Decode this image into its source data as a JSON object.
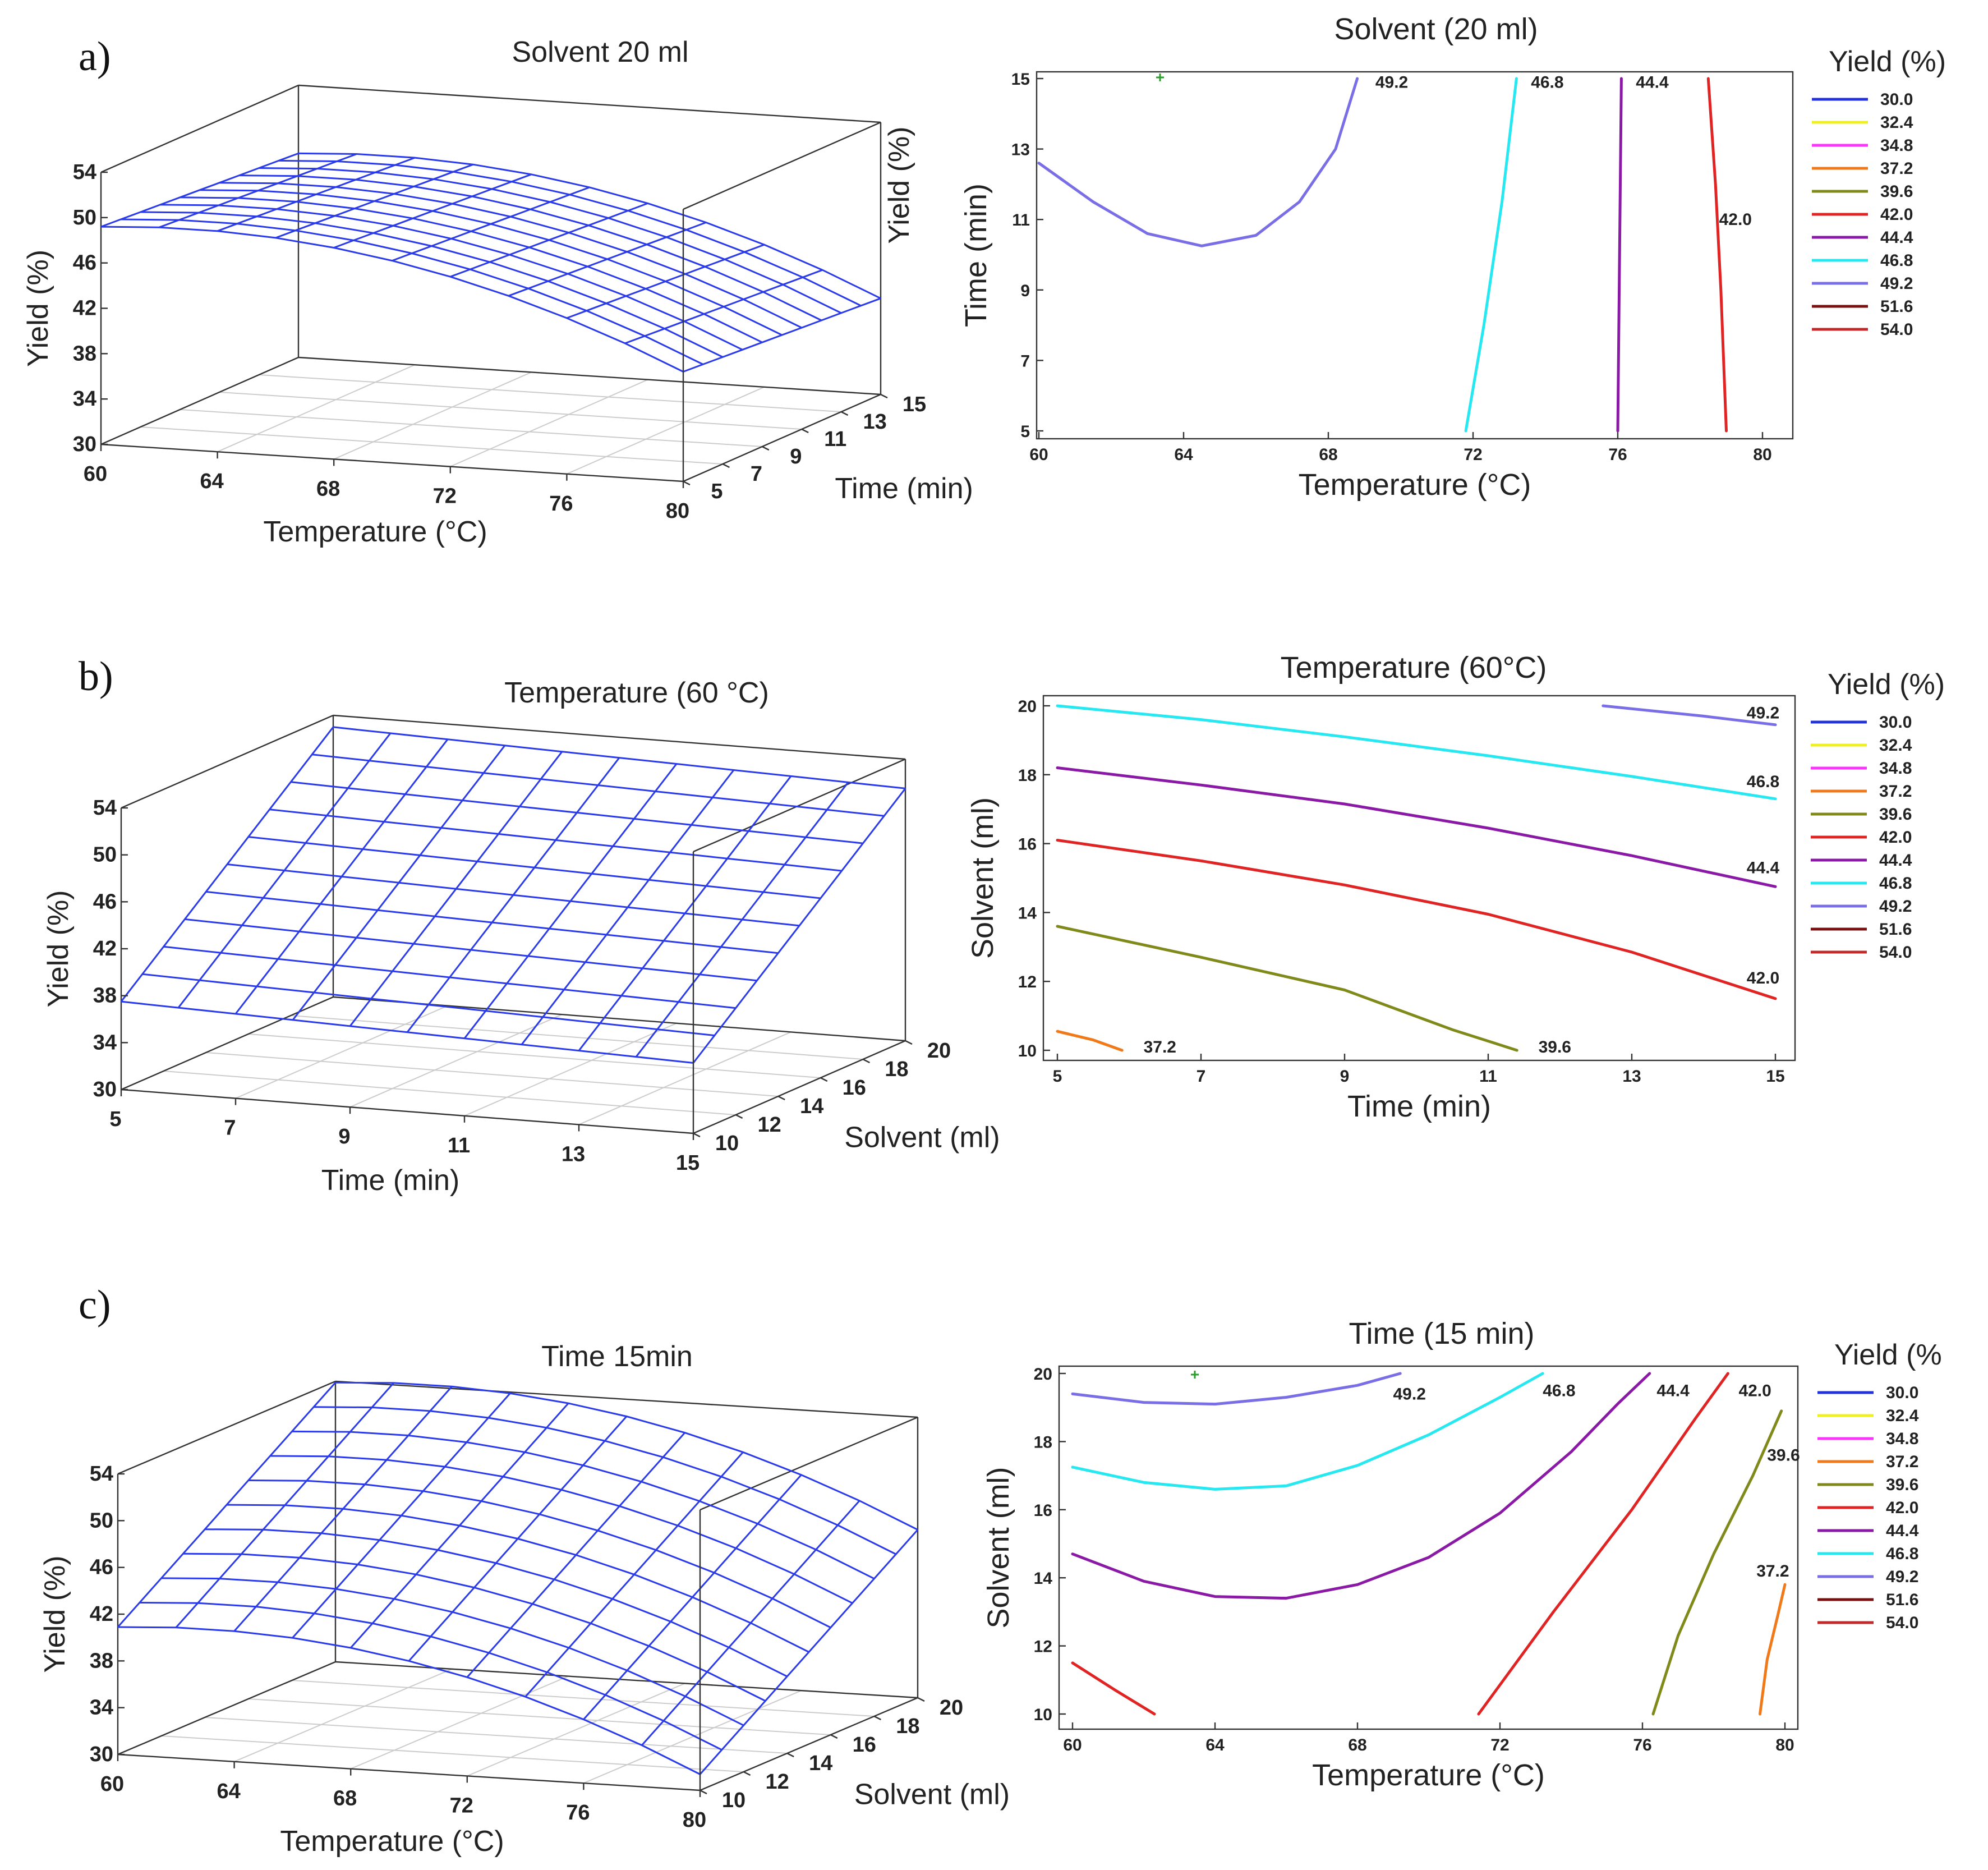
{
  "figure": {
    "panels": [
      {
        "label": "a)",
        "surface": {
          "type": "surface3d",
          "title": "Solvent 20 ml",
          "xlabel": "Temperature (°C)",
          "ylabel": "Time (min)",
          "zlabel": "Yield (%)",
          "x_ticks": [
            "60",
            "64",
            "68",
            "72",
            "76",
            "80"
          ],
          "y_ticks": [
            "5",
            "7",
            "9",
            "11",
            "13",
            "15"
          ],
          "z_ticks": [
            "30",
            "34",
            "38",
            "42",
            "46",
            "50",
            "54"
          ],
          "x_range": [
            60,
            80
          ],
          "y_range": [
            5,
            15
          ],
          "z_range": [
            30,
            54
          ],
          "model": "yield(T, t)",
          "overlay_label": "Yield (%)"
        },
        "contour": {
          "type": "contour",
          "title": "Solvent (20 ml)",
          "xlabel": "Temperature (°C)",
          "ylabel": "Time (min)",
          "x_ticks": [
            "60",
            "64",
            "68",
            "72",
            "76",
            "80"
          ],
          "y_ticks": [
            "5",
            "7",
            "9",
            "11",
            "13",
            "15"
          ],
          "x_range": [
            60,
            80
          ],
          "y_range": [
            5,
            15
          ],
          "lines": [
            {
              "level": "49.2",
              "color": "#7a6ee6",
              "points": [
                [
                  60,
                  12.6
                ],
                [
                  61.5,
                  11.5
                ],
                [
                  63,
                  10.6
                ],
                [
                  64.5,
                  10.25
                ],
                [
                  66,
                  10.55
                ],
                [
                  67.2,
                  11.5
                ],
                [
                  68.2,
                  13.0
                ],
                [
                  68.8,
                  15.0
                ]
              ],
              "label_at": [
                69.3,
                14.9
              ]
            },
            {
              "level": "46.8",
              "color": "#25e8f0",
              "points": [
                [
                  71.8,
                  5.0
                ],
                [
                  72.3,
                  8.0
                ],
                [
                  72.8,
                  11.5
                ],
                [
                  73.2,
                  15.0
                ]
              ],
              "label_at": [
                73.6,
                14.9
              ]
            },
            {
              "level": "44.4",
              "color": "#8a1aa6",
              "points": [
                [
                  76.0,
                  5.0
                ],
                [
                  76.05,
                  10.0
                ],
                [
                  76.1,
                  15.0
                ]
              ],
              "label_at": [
                76.5,
                14.9
              ]
            },
            {
              "level": "42.0",
              "color": "#e02424",
              "points": [
                [
                  79.0,
                  5.0
                ],
                [
                  78.85,
                  9.0
                ],
                [
                  78.7,
                  12.0
                ],
                [
                  78.5,
                  15.0
                ]
              ],
              "label_at": [
                78.8,
                11.0
              ]
            }
          ]
        }
      },
      {
        "label": "b)",
        "surface": {
          "type": "surface3d",
          "title": "Temperature (60 °C)",
          "xlabel": "Time (min)",
          "ylabel": "Solvent (ml)",
          "zlabel": "Yield (%)",
          "x_ticks": [
            "5",
            "7",
            "9",
            "11",
            "13",
            "15"
          ],
          "y_ticks": [
            "10",
            "12",
            "14",
            "16",
            "18",
            "20"
          ],
          "z_ticks": [
            "30",
            "34",
            "38",
            "42",
            "46",
            "50",
            "54"
          ],
          "x_range": [
            5,
            15
          ],
          "y_range": [
            10,
            20
          ],
          "z_range": [
            30,
            54
          ],
          "model": "yield(t, S)"
        },
        "contour": {
          "type": "contour",
          "title": "Temperature (60°C)",
          "xlabel": "Time (min)",
          "ylabel": "Solvent (ml)",
          "x_ticks": [
            "5",
            "7",
            "9",
            "11",
            "13",
            "15"
          ],
          "y_ticks": [
            "10",
            "12",
            "14",
            "16",
            "18",
            "20"
          ],
          "x_range": [
            5,
            15
          ],
          "y_range": [
            10,
            20
          ],
          "lines": [
            {
              "level": "49.2",
              "color": "#7a6ee6",
              "points": [
                [
                  12.6,
                  20.0
                ],
                [
                  14,
                  19.7
                ],
                [
                  15,
                  19.45
                ]
              ],
              "label_at": [
                14.6,
                19.8
              ]
            },
            {
              "level": "46.8",
              "color": "#25e8f0",
              "points": [
                [
                  5,
                  20.0
                ],
                [
                  7,
                  19.6
                ],
                [
                  9,
                  19.1
                ],
                [
                  11,
                  18.55
                ],
                [
                  13,
                  17.95
                ],
                [
                  15,
                  17.3
                ]
              ],
              "label_at": [
                14.6,
                17.8
              ]
            },
            {
              "level": "44.4",
              "color": "#8a1aa6",
              "points": [
                [
                  5,
                  18.2
                ],
                [
                  7,
                  17.7
                ],
                [
                  9,
                  17.15
                ],
                [
                  11,
                  16.45
                ],
                [
                  13,
                  15.65
                ],
                [
                  15,
                  14.75
                ]
              ],
              "label_at": [
                14.6,
                15.3
              ]
            },
            {
              "level": "42.0",
              "color": "#e02424",
              "points": [
                [
                  5,
                  16.1
                ],
                [
                  7,
                  15.5
                ],
                [
                  9,
                  14.8
                ],
                [
                  11,
                  13.95
                ],
                [
                  13,
                  12.85
                ],
                [
                  15,
                  11.5
                ]
              ],
              "label_at": [
                14.6,
                12.1
              ]
            },
            {
              "level": "39.6",
              "color": "#7f8a1a",
              "points": [
                [
                  5,
                  13.6
                ],
                [
                  7,
                  12.7
                ],
                [
                  9,
                  11.75
                ],
                [
                  10.5,
                  10.6
                ],
                [
                  11.4,
                  10.0
                ]
              ],
              "label_at": [
                11.7,
                10.1
              ]
            },
            {
              "level": "37.2",
              "color": "#f07a1a",
              "points": [
                [
                  5,
                  10.55
                ],
                [
                  5.5,
                  10.3
                ],
                [
                  5.9,
                  10.0
                ]
              ],
              "label_at": [
                6.2,
                10.1
              ]
            }
          ]
        }
      },
      {
        "label": "c)",
        "surface": {
          "type": "surface3d",
          "title": "Time 15min",
          "xlabel": "Temperature (°C)",
          "ylabel": "Solvent (ml)",
          "zlabel": "Yield (%)",
          "x_ticks": [
            "60",
            "64",
            "68",
            "72",
            "76",
            "80"
          ],
          "y_ticks": [
            "10",
            "12",
            "14",
            "16",
            "18",
            "20"
          ],
          "z_ticks": [
            "30",
            "34",
            "38",
            "42",
            "46",
            "50",
            "54"
          ],
          "x_range": [
            60,
            80
          ],
          "y_range": [
            10,
            20
          ],
          "z_range": [
            30,
            54
          ],
          "model": "yield(T, S)"
        },
        "contour": {
          "type": "contour",
          "title": "Time (15 min)",
          "xlabel": "Temperature (°C)",
          "ylabel": "Solvent (ml)",
          "x_ticks": [
            "60",
            "64",
            "68",
            "72",
            "76",
            "80"
          ],
          "y_ticks": [
            "10",
            "12",
            "14",
            "16",
            "18",
            "20"
          ],
          "x_range": [
            60,
            80
          ],
          "y_range": [
            10,
            20
          ],
          "lines": [
            {
              "level": "49.2",
              "color": "#7a6ee6",
              "points": [
                [
                  60,
                  19.4
                ],
                [
                  62,
                  19.15
                ],
                [
                  64,
                  19.1
                ],
                [
                  66,
                  19.3
                ],
                [
                  68,
                  19.65
                ],
                [
                  69.2,
                  20.0
                ]
              ],
              "label_at": [
                69.0,
                19.4
              ]
            },
            {
              "level": "46.8",
              "color": "#25e8f0",
              "points": [
                [
                  60,
                  17.25
                ],
                [
                  62,
                  16.8
                ],
                [
                  64,
                  16.6
                ],
                [
                  66,
                  16.7
                ],
                [
                  68,
                  17.3
                ],
                [
                  70,
                  18.2
                ],
                [
                  72,
                  19.3
                ],
                [
                  73.2,
                  20.0
                ]
              ],
              "label_at": [
                73.2,
                19.5
              ]
            },
            {
              "level": "44.4",
              "color": "#8a1aa6",
              "points": [
                [
                  60,
                  14.7
                ],
                [
                  62,
                  13.9
                ],
                [
                  64,
                  13.45
                ],
                [
                  66,
                  13.4
                ],
                [
                  68,
                  13.8
                ],
                [
                  70,
                  14.6
                ],
                [
                  72,
                  15.9
                ],
                [
                  74,
                  17.7
                ],
                [
                  75.3,
                  19.1
                ],
                [
                  76.2,
                  20.0
                ]
              ],
              "label_at": [
                76.4,
                19.5
              ]
            },
            {
              "level": "42.0",
              "color": "#e02424",
              "points": [
                [
                  60,
                  11.5
                ],
                [
                  61.2,
                  10.7
                ],
                [
                  62.3,
                  10.0
                ]
              ],
              "label_at": null
            },
            {
              "level": "42.0",
              "color": "#e02424",
              "points": [
                [
                  71.4,
                  10.0
                ],
                [
                  73.5,
                  13.0
                ],
                [
                  75.7,
                  16.0
                ],
                [
                  77.5,
                  18.7
                ],
                [
                  78.4,
                  20.0
                ]
              ],
              "label_at": [
                78.7,
                19.5
              ]
            },
            {
              "level": "39.6",
              "color": "#7f8a1a",
              "points": [
                [
                  76.3,
                  10.0
                ],
                [
                  77,
                  12.3
                ],
                [
                  78,
                  14.7
                ],
                [
                  79.1,
                  17.0
                ],
                [
                  79.9,
                  18.9
                ]
              ],
              "label_at": [
                79.5,
                17.6
              ]
            },
            {
              "level": "37.2",
              "color": "#f07a1a",
              "points": [
                [
                  79.3,
                  10.0
                ],
                [
                  79.5,
                  11.6
                ],
                [
                  79.8,
                  12.9
                ],
                [
                  80.0,
                  13.8
                ]
              ],
              "label_at": [
                79.2,
                14.2
              ]
            }
          ]
        }
      }
    ],
    "legend": {
      "title": "Yield (%)",
      "title_c": "Yield (%",
      "items": [
        {
          "label": "30.0",
          "color": "#2233dd"
        },
        {
          "label": "32.4",
          "color": "#f0f020"
        },
        {
          "label": "34.8",
          "color": "#ff33ff"
        },
        {
          "label": "37.2",
          "color": "#f07a1a"
        },
        {
          "label": "39.6",
          "color": "#7f8a1a"
        },
        {
          "label": "42.0",
          "color": "#e02424"
        },
        {
          "label": "44.4",
          "color": "#8a1aa6"
        },
        {
          "label": "46.8",
          "color": "#25e8f0"
        },
        {
          "label": "49.2",
          "color": "#7a6ee6"
        },
        {
          "label": "51.6",
          "color": "#7a1010"
        },
        {
          "label": "54.0",
          "color": "#c02a2a"
        }
      ]
    },
    "colors": {
      "surface_mesh": "#2b3be8",
      "box_lines": "#333333",
      "floor_grid": "#cccccc",
      "center_marker": "#2a9d2a"
    }
  },
  "chart_data": [
    {
      "type": "surface",
      "title": "Solvent 20 ml",
      "x": "Temperature (°C)",
      "y": "Time (min)",
      "z": "Yield (%)",
      "xlim": [
        60,
        80
      ],
      "ylim": [
        5,
        15
      ],
      "zlim": [
        30,
        54
      ]
    },
    {
      "type": "line",
      "title": "Solvent (20 ml)",
      "xlabel": "Temperature (°C)",
      "ylabel": "Time (min)",
      "xlim": [
        60,
        80
      ],
      "ylim": [
        5,
        15
      ],
      "series": [
        {
          "name": "49.2"
        },
        {
          "name": "46.8"
        },
        {
          "name": "44.4"
        },
        {
          "name": "42.0"
        }
      ]
    },
    {
      "type": "surface",
      "title": "Temperature (60 °C)",
      "x": "Time (min)",
      "y": "Solvent (ml)",
      "z": "Yield (%)",
      "xlim": [
        5,
        15
      ],
      "ylim": [
        10,
        20
      ],
      "zlim": [
        30,
        54
      ]
    },
    {
      "type": "line",
      "title": "Temperature (60°C)",
      "xlabel": "Time (min)",
      "ylabel": "Solvent (ml)",
      "xlim": [
        5,
        15
      ],
      "ylim": [
        10,
        20
      ],
      "series": [
        {
          "name": "49.2"
        },
        {
          "name": "46.8"
        },
        {
          "name": "44.4"
        },
        {
          "name": "42.0"
        },
        {
          "name": "39.6"
        },
        {
          "name": "37.2"
        }
      ]
    },
    {
      "type": "surface",
      "title": "Time 15min",
      "x": "Temperature (°C)",
      "y": "Solvent (ml)",
      "z": "Yield (%)",
      "xlim": [
        60,
        80
      ],
      "ylim": [
        10,
        20
      ],
      "zlim": [
        30,
        54
      ]
    },
    {
      "type": "line",
      "title": "Time (15 min)",
      "xlabel": "Temperature (°C)",
      "ylabel": "Solvent (ml)",
      "xlim": [
        60,
        80
      ],
      "ylim": [
        10,
        20
      ],
      "series": [
        {
          "name": "49.2"
        },
        {
          "name": "46.8"
        },
        {
          "name": "44.4"
        },
        {
          "name": "42.0"
        },
        {
          "name": "39.6"
        },
        {
          "name": "37.2"
        }
      ]
    }
  ]
}
